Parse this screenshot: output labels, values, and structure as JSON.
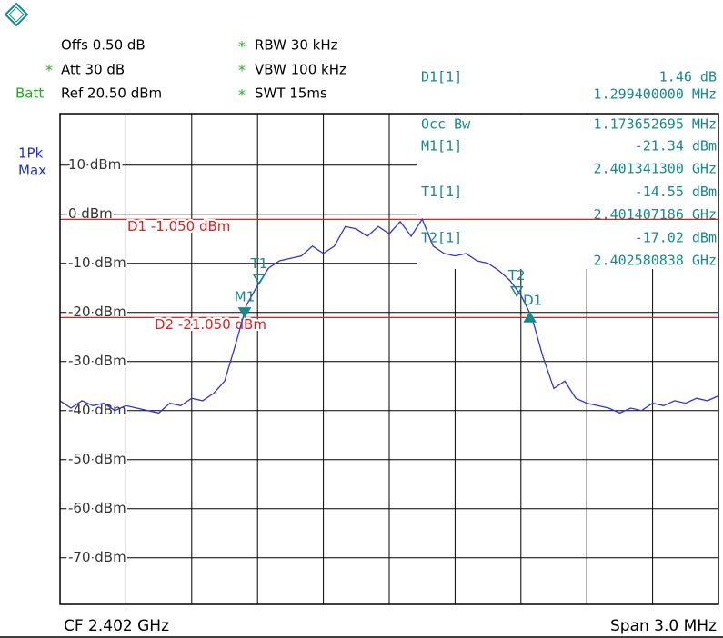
{
  "header": {
    "offs": "Offs 0.50 dB",
    "att": "Att  30 dB",
    "ref": "Ref 20.50 dBm",
    "batt": "Batt",
    "rbw": "RBW 30 kHz",
    "vbw": "VBW 100 kHz",
    "swt": "SWT 15ms",
    "coupled_mark": "*"
  },
  "footer": {
    "center": "CF 2.402 GHz",
    "span": "Span 3.0 MHz"
  },
  "chart_data": {
    "type": "line",
    "trace_label": [
      "1Pk",
      "Max"
    ],
    "color": "#3333dd",
    "xlim": [
      2.4005,
      2.4035
    ],
    "ylim": [
      -79.5,
      20.5
    ],
    "yticks": [
      {
        "value": 10,
        "label": "10 dBm"
      },
      {
        "value": 0,
        "label": "0 dBm"
      },
      {
        "value": -10,
        "label": "-10 dBm"
      },
      {
        "value": -20,
        "label": "-20 dBm"
      },
      {
        "value": -30,
        "label": "-30 dBm"
      },
      {
        "value": -40,
        "label": "-40 dBm"
      },
      {
        "value": -50,
        "label": "-50 dBm"
      },
      {
        "value": -60,
        "label": "-60 dBm"
      },
      {
        "value": -70,
        "label": "-70 dBm"
      }
    ],
    "grid": true,
    "x": [
      2.4005,
      2.40055,
      2.4006,
      2.40065,
      2.4007,
      2.40075,
      2.4008,
      2.40085,
      2.4009,
      2.40095,
      2.401,
      2.40105,
      2.4011,
      2.40115,
      2.4012,
      2.40125,
      2.4013,
      2.40135,
      2.4014,
      2.40145,
      2.4015,
      2.40155,
      2.4016,
      2.40165,
      2.4017,
      2.40175,
      2.4018,
      2.40185,
      2.4019,
      2.40195,
      2.402,
      2.40205,
      2.4021,
      2.40215,
      2.4022,
      2.40225,
      2.4023,
      2.40235,
      2.4024,
      2.40245,
      2.4025,
      2.40255,
      2.4026,
      2.40265,
      2.4027,
      2.40275,
      2.4028,
      2.40285,
      2.4029,
      2.40295,
      2.403,
      2.40305,
      2.4031,
      2.40315,
      2.4032,
      2.40325,
      2.4033,
      2.40335,
      2.4034,
      2.40345,
      2.4035
    ],
    "values": [
      -38,
      -39.5,
      -38,
      -39,
      -38.5,
      -40,
      -39,
      -39.5,
      -40,
      -40.5,
      -38.5,
      -39,
      -37.5,
      -38,
      -36.5,
      -34,
      -26.5,
      -18.5,
      -14.5,
      -11,
      -9.5,
      -9,
      -8.5,
      -6.5,
      -8,
      -6.5,
      -2.5,
      -3,
      -4.5,
      -2.5,
      -4,
      -1.5,
      -4.5,
      -1,
      -6.5,
      -8,
      -8.5,
      -8,
      -9.5,
      -10,
      -11.5,
      -13.5,
      -16.5,
      -21,
      -29,
      -35.5,
      -34,
      -37.5,
      -38.5,
      -39,
      -39.5,
      -40.5,
      -39.5,
      -40,
      -38.5,
      -39,
      -38,
      -38.5,
      -37.5,
      -38,
      -37
    ],
    "display_lines": [
      {
        "value": -1.05,
        "label": "D1  -1.050 dBm"
      },
      {
        "value": -21.05,
        "label": "D2  -21.050 dBm"
      }
    ],
    "display_line_color": "#e02020",
    "marker_color": "#178a8a",
    "delta_marker": {
      "name": "D1",
      "label": "D1[1]",
      "dx": 0.0012994,
      "dx_label": "1.299400000 MHz",
      "dy": 1.46,
      "dy_label": "1.46 dB"
    },
    "occ_bw": {
      "label": "Occ Bw",
      "value_label": "1.173652695 MHz"
    },
    "markers": [
      {
        "name": "M1",
        "label": "M1[1]",
        "x": 2.4013413,
        "x_label": "2.401341300 GHz",
        "y": -21.34,
        "y_label": "-21.34 dBm"
      },
      {
        "name": "T1",
        "label": "T1[1]",
        "x": 2.401407186,
        "x_label": "2.401407186 GHz",
        "y": -14.55,
        "y_label": "-14.55 dBm"
      },
      {
        "name": "T2",
        "label": "T2[1]",
        "x": 2.402580838,
        "x_label": "2.402580838 GHz",
        "y": -17.02,
        "y_label": "-17.02 dBm"
      }
    ]
  }
}
